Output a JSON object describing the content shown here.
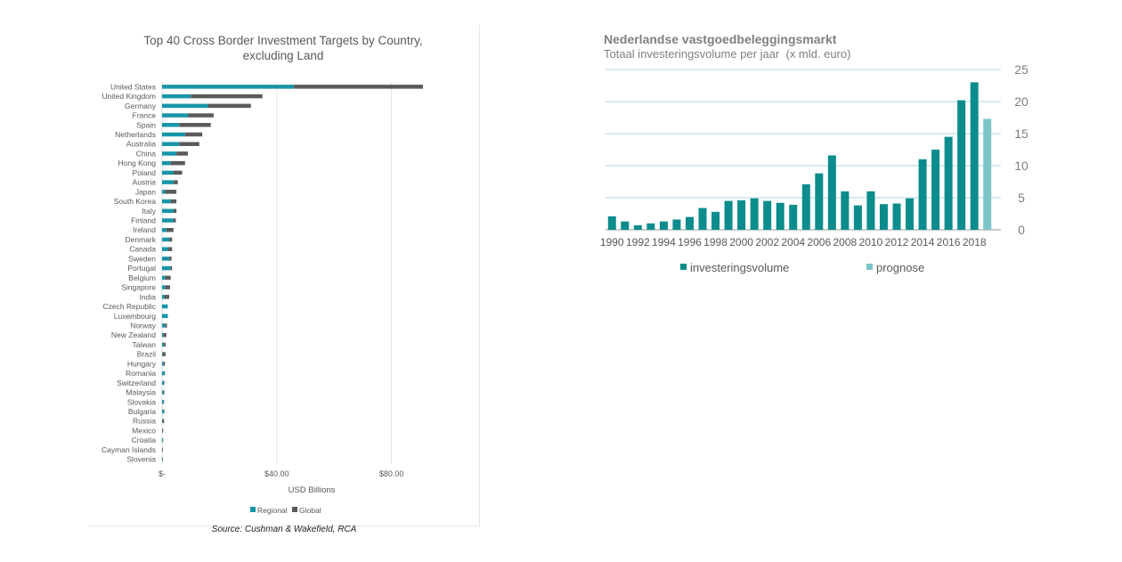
{
  "colors": {
    "regional": "#1695a8",
    "global": "#5a5a5a",
    "investment": "#0c8c8c",
    "forecast": "#7cc4c8",
    "gridline": "#a8d8e0"
  },
  "left_chart": {
    "source_note": "Source: Cushman & Wakefield, RCA"
  },
  "chart_data": [
    {
      "type": "bar",
      "orientation": "horizontal",
      "stacked": true,
      "title": "Top 40 Cross Border Investment Targets by Country, excluding Land",
      "title_lines": [
        "Top 40 Cross Border Investment Targets by Country,",
        "excluding Land"
      ],
      "xlabel": "USD Billions",
      "ylabel": "",
      "xlim": [
        0,
        100
      ],
      "xticks": [
        0,
        40,
        80
      ],
      "xtick_labels": [
        "$-",
        "$40.00",
        "$80.00"
      ],
      "grid": true,
      "legend_position": "bottom",
      "categories": [
        "United States",
        "United Kingdom",
        "Germany",
        "France",
        "Spain",
        "Netherlands",
        "Australia",
        "China",
        "Hong Kong",
        "Poland",
        "Austria",
        "Japan",
        "South Korea",
        "Italy",
        "Finland",
        "Ireland",
        "Denmark",
        "Canada",
        "Sweden",
        "Portugal",
        "Belgium",
        "Singapore",
        "India",
        "Czech Republic",
        "Luxembourg",
        "Norway",
        "New Zealand",
        "Taiwan",
        "Brazil",
        "Hungary",
        "Romania",
        "Switzerland",
        "Malaysia",
        "Slovakia",
        "Bulgaria",
        "Russia",
        "Mexico",
        "Croatia",
        "Cayman Islands",
        "Slovenia"
      ],
      "series": [
        {
          "name": "Regional",
          "values": [
            46,
            10,
            16,
            9,
            6,
            8,
            6,
            5,
            3,
            4,
            4,
            1,
            3,
            4,
            4,
            1.5,
            2.5,
            2,
            2.5,
            3,
            1,
            1,
            0.8,
            2,
            2,
            1,
            0.4,
            0.5,
            0.2,
            0.5,
            0.8,
            0.6,
            0.4,
            0.5,
            0.6,
            0.2,
            0.1,
            0.3,
            0.1,
            0.2
          ]
        },
        {
          "name": "Global",
          "values": [
            45,
            25,
            15,
            9,
            11,
            6,
            7,
            4,
            5,
            3,
            1.5,
            4,
            2,
            1,
            0.8,
            2.5,
            1,
            1.5,
            0.8,
            0.5,
            2,
            1.8,
            1.7,
            0,
            0,
            0.7,
            1.1,
            0.7,
            1,
            0.5,
            0.2,
            0.2,
            0.4,
            0.2,
            0.2,
            0.5,
            0.3,
            0.1,
            0.2,
            0.1
          ]
        }
      ]
    },
    {
      "type": "bar",
      "title": "Nederlandse vastgoedbeleggingsmarkt",
      "subtitle": "Totaal investeringsvolume per jaar  (x mld. euro)",
      "xlabel": "",
      "ylabel": "",
      "ylim": [
        0,
        25
      ],
      "yticks": [
        0,
        5,
        10,
        15,
        20,
        25
      ],
      "y_axis_position": "right",
      "grid": true,
      "legend_position": "bottom",
      "categories": [
        "1990",
        "1991",
        "1992",
        "1993",
        "1994",
        "1995",
        "1996",
        "1997",
        "1998",
        "1999",
        "2000",
        "2001",
        "2002",
        "2003",
        "2004",
        "2005",
        "2006",
        "2007",
        "2008",
        "2009",
        "2010",
        "2011",
        "2012",
        "2013",
        "2014",
        "2015",
        "2016",
        "2017",
        "2018",
        "2019"
      ],
      "x_tick_labels": [
        "1990",
        "1992",
        "1994",
        "1996",
        "1998",
        "2000",
        "2002",
        "2004",
        "2006",
        "2008",
        "2010",
        "2012",
        "2014",
        "2016",
        "2018"
      ],
      "series": [
        {
          "name": "investeringsvolume",
          "values": [
            2.1,
            1.3,
            0.7,
            1.0,
            1.3,
            1.6,
            2.0,
            3.4,
            2.8,
            4.5,
            4.6,
            4.9,
            4.5,
            4.2,
            3.9,
            7.1,
            8.8,
            11.6,
            6.0,
            3.8,
            6.0,
            4.0,
            4.1,
            4.9,
            11.0,
            12.5,
            14.5,
            20.2,
            23.0,
            null
          ]
        },
        {
          "name": "prognose",
          "values": [
            null,
            null,
            null,
            null,
            null,
            null,
            null,
            null,
            null,
            null,
            null,
            null,
            null,
            null,
            null,
            null,
            null,
            null,
            null,
            null,
            null,
            null,
            null,
            null,
            null,
            null,
            null,
            null,
            null,
            17.3
          ]
        }
      ]
    }
  ]
}
